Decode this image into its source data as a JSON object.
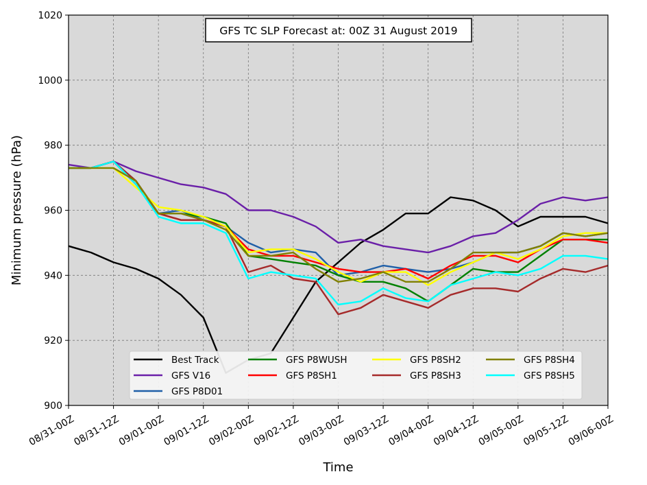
{
  "chart_data": {
    "type": "line",
    "title": "GFS TC SLP Forecast at: 00Z 31 August 2019",
    "xlabel": "Time",
    "ylabel": "Minimum pressure (hPa)",
    "ylim": [
      900,
      1020
    ],
    "yticks": [
      900,
      920,
      940,
      960,
      980,
      1000,
      1020
    ],
    "x_tick_labels": [
      "08/31-00Z",
      "08/31-12Z",
      "09/01-00Z",
      "09/01-12Z",
      "09/02-00Z",
      "09/02-12Z",
      "09/03-00Z",
      "09/03-12Z",
      "09/04-00Z",
      "09/04-12Z",
      "09/05-00Z",
      "09/05-12Z",
      "09/06-00Z"
    ],
    "x": [
      "08/31-00Z",
      "08/31-06Z",
      "08/31-12Z",
      "08/31-18Z",
      "09/01-00Z",
      "09/01-06Z",
      "09/01-12Z",
      "09/01-18Z",
      "09/02-00Z",
      "09/02-06Z",
      "09/02-12Z",
      "09/02-18Z",
      "09/03-00Z",
      "09/03-06Z",
      "09/03-12Z",
      "09/03-18Z",
      "09/04-00Z",
      "09/04-06Z",
      "09/04-12Z",
      "09/04-18Z",
      "09/05-00Z",
      "09/05-06Z",
      "09/05-12Z",
      "09/05-18Z",
      "09/06-00Z"
    ],
    "grid": true,
    "legend_position": "lower center",
    "background": "#d9d9d9",
    "series": [
      {
        "name": "Best Track",
        "color": "#000000",
        "values": [
          949,
          947,
          944,
          942,
          939,
          934,
          927,
          910,
          914,
          916,
          927,
          938,
          944,
          950,
          954,
          959,
          959,
          964,
          963,
          960,
          955,
          958,
          958,
          958,
          956
        ]
      },
      {
        "name": "GFS V16",
        "color": "#6a1fa8",
        "values": [
          974,
          973,
          975,
          972,
          970,
          968,
          967,
          965,
          960,
          960,
          958,
          955,
          950,
          951,
          949,
          948,
          947,
          949,
          952,
          953,
          957,
          962,
          964,
          963,
          964
        ]
      },
      {
        "name": "GFS P8D01",
        "color": "#1f5fa8",
        "values": [
          973,
          973,
          975,
          969,
          959,
          960,
          957,
          955,
          950,
          947,
          948,
          947,
          940,
          941,
          943,
          942,
          941,
          942,
          944,
          947,
          947,
          949,
          953,
          952,
          953
        ]
      },
      {
        "name": "GFS P8WUSH",
        "color": "#008000",
        "values": [
          973,
          973,
          975,
          968,
          959,
          959,
          958,
          956,
          946,
          945,
          944,
          943,
          940,
          938,
          938,
          936,
          932,
          937,
          942,
          941,
          941,
          946,
          951,
          951,
          951
        ]
      },
      {
        "name": "GFS P8SH1",
        "color": "#ff0000",
        "values": [
          973,
          973,
          975,
          968,
          959,
          957,
          957,
          955,
          948,
          946,
          946,
          944,
          942,
          941,
          941,
          942,
          939,
          943,
          946,
          946,
          944,
          948,
          951,
          951,
          950
        ]
      },
      {
        "name": "GFS P8SH3",
        "color": "#a52a2a",
        "values": [
          973,
          973,
          975,
          969,
          959,
          957,
          957,
          955,
          941,
          943,
          939,
          938,
          928,
          930,
          934,
          932,
          930,
          934,
          936,
          936,
          935,
          939,
          942,
          941,
          943
        ]
      },
      {
        "name": "GFS P8SH2",
        "color": "#ffff00",
        "values": [
          973,
          973,
          973,
          967,
          961,
          960,
          958,
          955,
          947,
          948,
          948,
          945,
          941,
          938,
          941,
          941,
          937,
          941,
          944,
          947,
          945,
          948,
          952,
          953,
          953
        ]
      },
      {
        "name": "GFS P8SH5",
        "color": "#00ffff",
        "values": [
          973,
          973,
          975,
          968,
          958,
          956,
          956,
          953,
          939,
          941,
          940,
          939,
          931,
          932,
          936,
          933,
          932,
          937,
          939,
          941,
          940,
          942,
          946,
          946,
          945
        ]
      },
      {
        "name": "GFS P8SH4",
        "color": "#808000",
        "values": [
          973,
          973,
          973,
          969,
          959,
          959,
          957,
          954,
          946,
          946,
          947,
          942,
          938,
          939,
          941,
          938,
          938,
          942,
          947,
          947,
          947,
          949,
          953,
          952,
          953
        ]
      }
    ],
    "legend": [
      [
        {
          "name": "Best Track",
          "color": "#000000"
        },
        {
          "name": "GFS V16",
          "color": "#6a1fa8"
        },
        {
          "name": "GFS P8D01",
          "color": "#1f5fa8"
        }
      ],
      [
        {
          "name": "GFS P8WUSH",
          "color": "#008000"
        },
        {
          "name": "GFS P8SH1",
          "color": "#ff0000"
        }
      ],
      [
        {
          "name": "GFS P8SH2",
          "color": "#ffff00"
        },
        {
          "name": "GFS P8SH3",
          "color": "#a52a2a"
        }
      ],
      [
        {
          "name": "GFS P8SH4",
          "color": "#808000"
        },
        {
          "name": "GFS P8SH5",
          "color": "#00ffff"
        }
      ]
    ]
  }
}
